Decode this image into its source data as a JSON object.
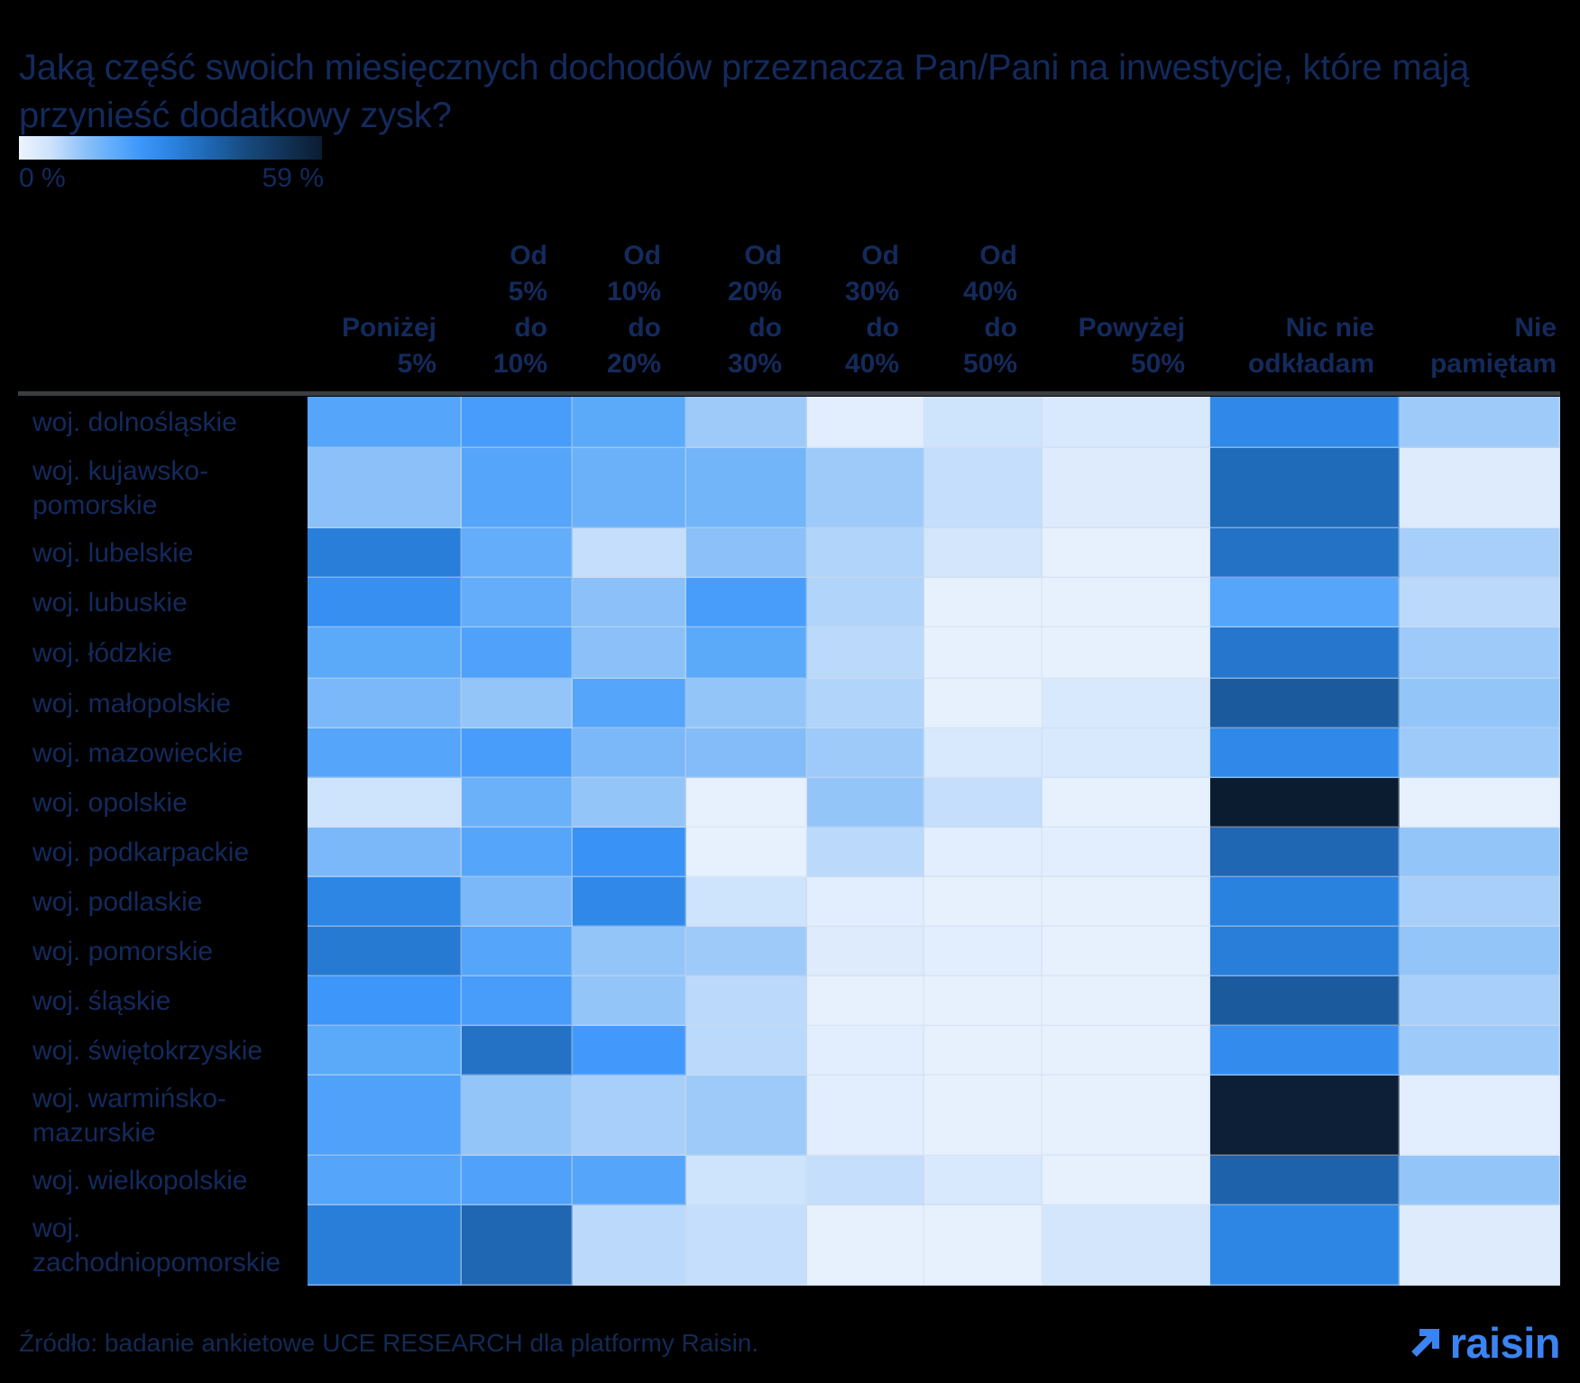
{
  "title": "Jaką część swoich miesięcznych dochodów przeznacza Pan/Pani na inwestycje, które mają przynieść dodatkowy zysk?",
  "legend": {
    "min_label": "0 %",
    "max_label": "59 %"
  },
  "header_display": [
    "Poniżej\n5%",
    "Od\n5%\ndo\n10%",
    "Od\n10%\ndo\n20%",
    "Od\n20%\ndo\n30%",
    "Od\n30%\ndo\n40%",
    "Od\n40%\ndo\n50%",
    "Powyżej\n50%",
    "Nic nie\nodkładam",
    "Nie\npamiętam"
  ],
  "footer": {
    "source": "Źródło: badanie ankietowe UCE RESEARCH dla platformy Raisin."
  },
  "logo": {
    "text": "raisin",
    "color": "#3c83f2"
  },
  "colors": {
    "text": "#132a5c",
    "background": "#000000",
    "divider": "#3a3e42",
    "accent": "#3c83f2"
  },
  "chart_data": {
    "type": "heatmap",
    "title": "Jaką część swoich miesięcznych dochodów przeznacza Pan/Pani na inwestycje, które mają przynieść dodatkowy zysk?",
    "unit": "%",
    "columns": [
      "Poniżej 5%",
      "Od 5% do 10%",
      "Od 10% do 20%",
      "Od 20% do 30%",
      "Od 30% do 40%",
      "Od 40% do 50%",
      "Powyżej 50%",
      "Nic nie odkładam",
      "Nie pamiętam"
    ],
    "rows": [
      "woj. dolnośląskie",
      "woj. kujawsko-pomorskie",
      "woj. lubelskie",
      "woj. lubuskie",
      "woj. łódzkie",
      "woj. małopolskie",
      "woj. mazowieckie",
      "woj. opolskie",
      "woj. podkarpackie",
      "woj. podlaskie",
      "woj. pomorskie",
      "woj. śląskie",
      "woj. świętokrzyskie",
      "woj. warmińsko-mazurskie",
      "woj. wielkopolskie",
      "woj. zachodniopomorskie"
    ],
    "values": [
      [
        20,
        22,
        19,
        11,
        2,
        6,
        4,
        28,
        11
      ],
      [
        13,
        20,
        17,
        16,
        11,
        7,
        3,
        36,
        3
      ],
      [
        31,
        18,
        7,
        13,
        9,
        5,
        1,
        34,
        10
      ],
      [
        26,
        18,
        13,
        22,
        9,
        1,
        1,
        20,
        8
      ],
      [
        19,
        21,
        13,
        19,
        8,
        1,
        1,
        33,
        11
      ],
      [
        15,
        12,
        20,
        12,
        9,
        1,
        4,
        40,
        12
      ],
      [
        20,
        22,
        15,
        14,
        11,
        4,
        4,
        28,
        11
      ],
      [
        6,
        17,
        12,
        1,
        12,
        7,
        1,
        59,
        1
      ],
      [
        15,
        20,
        25,
        1,
        8,
        2,
        2,
        37,
        12
      ],
      [
        29,
        15,
        28,
        6,
        2,
        1,
        1,
        30,
        10
      ],
      [
        32,
        20,
        12,
        11,
        3,
        2,
        1,
        31,
        12
      ],
      [
        24,
        22,
        12,
        8,
        1,
        1,
        1,
        40,
        10
      ],
      [
        19,
        34,
        23,
        8,
        2,
        1,
        1,
        27,
        11
      ],
      [
        21,
        12,
        10,
        11,
        2,
        1,
        1,
        58,
        2
      ],
      [
        20,
        21,
        20,
        6,
        7,
        4,
        1,
        38,
        12
      ],
      [
        31,
        37,
        8,
        7,
        1,
        1,
        5,
        29,
        3
      ]
    ],
    "scale": {
      "min": 0,
      "max": 59,
      "min_label": "0 %",
      "max_label": "59 %",
      "stops": [
        [
          0.0,
          "#ecf4fe"
        ],
        [
          0.1,
          "#cfe3fc"
        ],
        [
          0.22,
          "#8bc0f8"
        ],
        [
          0.32,
          "#5caafa"
        ],
        [
          0.4,
          "#3e97fb"
        ],
        [
          0.5,
          "#2b84e2"
        ],
        [
          0.62,
          "#1f68b6"
        ],
        [
          0.75,
          "#174a7e"
        ],
        [
          1.0,
          "#0b1c31"
        ]
      ]
    },
    "legend_position": "top-left",
    "grid": false
  }
}
